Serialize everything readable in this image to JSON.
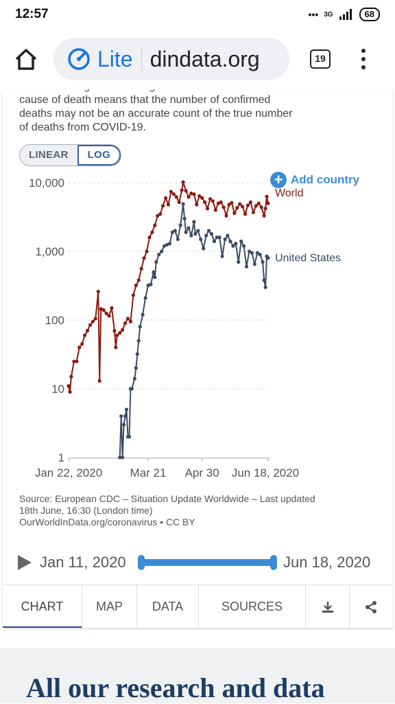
{
  "status": {
    "time": "12:57",
    "network": "3G",
    "battery": "68"
  },
  "browser": {
    "mode_label": "Lite",
    "url": "dindata.org",
    "tab_count": "19"
  },
  "note": {
    "text": "Limited testing and challenges in the attribution of the cause of death means that the number of confirmed deaths may not be an accurate count of the true number of deaths from COVID-19."
  },
  "scale": {
    "linear_label": "LINEAR",
    "log_label": "LOG",
    "selected": "LOG"
  },
  "add_country_label": "Add country",
  "chart_data": {
    "type": "line",
    "yscale": "log",
    "ylim": [
      1,
      10000
    ],
    "y_ticks": [
      "10,000",
      "1,000",
      "100",
      "10",
      "1"
    ],
    "x_ticks": [
      "Jan 22, 2020",
      "Mar 21",
      "Apr 30",
      "Jun 18, 2020"
    ],
    "x_range": [
      "2020-01-22",
      "2020-06-18"
    ],
    "grid": true,
    "legend": "inline-right",
    "series": [
      {
        "name": "World",
        "color": "#8b1a10",
        "points": [
          [
            "2020-01-22",
            11
          ],
          [
            "2020-01-23",
            9
          ],
          [
            "2020-01-24",
            15
          ],
          [
            "2020-01-26",
            25
          ],
          [
            "2020-01-28",
            25
          ],
          [
            "2020-01-30",
            40
          ],
          [
            "2020-02-01",
            45
          ],
          [
            "2020-02-03",
            60
          ],
          [
            "2020-02-05",
            70
          ],
          [
            "2020-02-07",
            85
          ],
          [
            "2020-02-09",
            95
          ],
          [
            "2020-02-11",
            105
          ],
          [
            "2020-02-13",
            260
          ],
          [
            "2020-02-14",
            13
          ],
          [
            "2020-02-15",
            145
          ],
          [
            "2020-02-17",
            140
          ],
          [
            "2020-02-19",
            125
          ],
          [
            "2020-02-21",
            115
          ],
          [
            "2020-02-23",
            150
          ],
          [
            "2020-02-25",
            70
          ],
          [
            "2020-02-26",
            40
          ],
          [
            "2020-02-27",
            60
          ],
          [
            "2020-02-29",
            65
          ],
          [
            "2020-03-02",
            72
          ],
          [
            "2020-03-04",
            90
          ],
          [
            "2020-03-06",
            105
          ],
          [
            "2020-03-08",
            95
          ],
          [
            "2020-03-10",
            230
          ],
          [
            "2020-03-12",
            320
          ],
          [
            "2020-03-14",
            380
          ],
          [
            "2020-03-16",
            560
          ],
          [
            "2020-03-18",
            800
          ],
          [
            "2020-03-20",
            1000
          ],
          [
            "2020-03-22",
            1600
          ],
          [
            "2020-03-24",
            1900
          ],
          [
            "2020-03-26",
            2400
          ],
          [
            "2020-03-28",
            3300
          ],
          [
            "2020-03-30",
            3500
          ],
          [
            "2020-04-01",
            4600
          ],
          [
            "2020-04-03",
            6000
          ],
          [
            "2020-04-05",
            4800
          ],
          [
            "2020-04-07",
            7400
          ],
          [
            "2020-04-09",
            6800
          ],
          [
            "2020-04-11",
            6200
          ],
          [
            "2020-04-13",
            5200
          ],
          [
            "2020-04-15",
            7800
          ],
          [
            "2020-04-16",
            10200
          ],
          [
            "2020-04-18",
            7600
          ],
          [
            "2020-04-20",
            6200
          ],
          [
            "2020-04-22",
            7000
          ],
          [
            "2020-04-24",
            6800
          ],
          [
            "2020-04-26",
            4800
          ],
          [
            "2020-04-28",
            6400
          ],
          [
            "2020-04-30",
            6000
          ],
          [
            "2020-05-02",
            5200
          ],
          [
            "2020-05-04",
            4200
          ],
          [
            "2020-05-06",
            5800
          ],
          [
            "2020-05-08",
            5400
          ],
          [
            "2020-05-10",
            4000
          ],
          [
            "2020-05-12",
            5000
          ],
          [
            "2020-05-14",
            5200
          ],
          [
            "2020-05-16",
            4400
          ],
          [
            "2020-05-18",
            3300
          ],
          [
            "2020-05-20",
            4800
          ],
          [
            "2020-05-22",
            5100
          ],
          [
            "2020-05-24",
            3600
          ],
          [
            "2020-05-26",
            4300
          ],
          [
            "2020-05-28",
            4900
          ],
          [
            "2020-05-30",
            4500
          ],
          [
            "2020-06-01",
            3500
          ],
          [
            "2020-06-03",
            4700
          ],
          [
            "2020-06-05",
            5200
          ],
          [
            "2020-06-07",
            3700
          ],
          [
            "2020-06-09",
            4600
          ],
          [
            "2020-06-11",
            5000
          ],
          [
            "2020-06-13",
            4400
          ],
          [
            "2020-06-15",
            3300
          ],
          [
            "2020-06-16",
            4200
          ],
          [
            "2020-06-17",
            6300
          ],
          [
            "2020-06-18",
            5000
          ]
        ]
      },
      {
        "name": "United States",
        "color": "#3b4c63",
        "points": [
          [
            "2020-02-29",
            1
          ],
          [
            "2020-03-01",
            4
          ],
          [
            "2020-03-02",
            1
          ],
          [
            "2020-03-03",
            3
          ],
          [
            "2020-03-04",
            4
          ],
          [
            "2020-03-05",
            5
          ],
          [
            "2020-03-06",
            2
          ],
          [
            "2020-03-07",
            2
          ],
          [
            "2020-03-08",
            10
          ],
          [
            "2020-03-09",
            10
          ],
          [
            "2020-03-11",
            14
          ],
          [
            "2020-03-12",
            20
          ],
          [
            "2020-03-13",
            32
          ],
          [
            "2020-03-14",
            50
          ],
          [
            "2020-03-15",
            80
          ],
          [
            "2020-03-17",
            120
          ],
          [
            "2020-03-19",
            210
          ],
          [
            "2020-03-21",
            320
          ],
          [
            "2020-03-23",
            330
          ],
          [
            "2020-03-25",
            500
          ],
          [
            "2020-03-26",
            420
          ],
          [
            "2020-03-27",
            700
          ],
          [
            "2020-03-29",
            900
          ],
          [
            "2020-03-31",
            1000
          ],
          [
            "2020-04-02",
            1200
          ],
          [
            "2020-04-04",
            1250
          ],
          [
            "2020-04-06",
            1300
          ],
          [
            "2020-04-08",
            1900
          ],
          [
            "2020-04-10",
            2000
          ],
          [
            "2020-04-12",
            1500
          ],
          [
            "2020-04-14",
            2400
          ],
          [
            "2020-04-16",
            4900
          ],
          [
            "2020-04-17",
            3000
          ],
          [
            "2020-04-18",
            1900
          ],
          [
            "2020-04-20",
            2200
          ],
          [
            "2020-04-22",
            1700
          ],
          [
            "2020-04-24",
            2700
          ],
          [
            "2020-04-25",
            1800
          ],
          [
            "2020-04-27",
            2000
          ],
          [
            "2020-04-29",
            1500
          ],
          [
            "2020-05-01",
            1100
          ],
          [
            "2020-05-03",
            1700
          ],
          [
            "2020-05-05",
            2000
          ],
          [
            "2020-05-07",
            1800
          ],
          [
            "2020-05-09",
            1400
          ],
          [
            "2020-05-11",
            1600
          ],
          [
            "2020-05-13",
            1600
          ],
          [
            "2020-05-15",
            850
          ],
          [
            "2020-05-17",
            1500
          ],
          [
            "2020-05-19",
            1700
          ],
          [
            "2020-05-21",
            1400
          ],
          [
            "2020-05-23",
            1200
          ],
          [
            "2020-05-25",
            1300
          ],
          [
            "2020-05-27",
            700
          ],
          [
            "2020-05-29",
            1400
          ],
          [
            "2020-05-31",
            1200
          ],
          [
            "2020-06-02",
            600
          ],
          [
            "2020-06-04",
            1000
          ],
          [
            "2020-06-06",
            950
          ],
          [
            "2020-06-08",
            650
          ],
          [
            "2020-06-10",
            950
          ],
          [
            "2020-06-12",
            900
          ],
          [
            "2020-06-14",
            700
          ],
          [
            "2020-06-15",
            380
          ],
          [
            "2020-06-16",
            300
          ],
          [
            "2020-06-17",
            850
          ],
          [
            "2020-06-18",
            800
          ]
        ]
      }
    ]
  },
  "source": {
    "line1": "Source: European CDC – Situation Update Worldwide – Last updated",
    "line2": "18th June, 16:30 (London time)",
    "line3": "OurWorldInData.org/coronavirus • CC BY"
  },
  "timeline": {
    "start": "Jan 11, 2020",
    "end": "Jun 18, 2020"
  },
  "tabs": [
    {
      "label": "CHART",
      "active": true
    },
    {
      "label": "MAP"
    },
    {
      "label": "DATA"
    },
    {
      "label": "SOURCES"
    }
  ],
  "icons": {
    "download": "download-icon",
    "share": "share-icon"
  },
  "research_title": "All our research and data"
}
